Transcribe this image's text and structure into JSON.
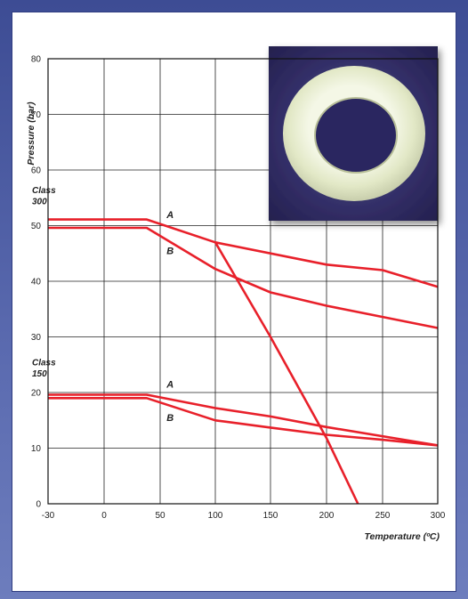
{
  "chart_data": {
    "type": "line",
    "xlabel": "Temperature (ºC)",
    "ylabel": "Pressure (bar)",
    "xlim": [
      -30,
      300
    ],
    "ylim": [
      0,
      80
    ],
    "x_ticks": [
      -30,
      0,
      50,
      100,
      150,
      200,
      250,
      300
    ],
    "y_ticks": [
      0,
      10,
      20,
      30,
      40,
      50,
      60,
      70,
      80
    ],
    "grid": true,
    "annotations": [
      {
        "text": "Class",
        "x": -28,
        "y": 56.5
      },
      {
        "text": "300",
        "x": -28,
        "y": 54.5
      },
      {
        "text": "Class",
        "x": -28,
        "y": 25.5
      },
      {
        "text": "150",
        "x": -28,
        "y": 23.5
      },
      {
        "text": "A",
        "x": 101,
        "y": 52
      },
      {
        "text": "B",
        "x": 101,
        "y": 45.5
      },
      {
        "text": "A",
        "x": 101,
        "y": 21.5
      },
      {
        "text": "B",
        "x": 101,
        "y": 15.5
      }
    ],
    "series": [
      {
        "values": [
          [
            -30,
            51.1
          ],
          [
            38,
            51.1
          ],
          [
            100,
            47
          ],
          [
            200,
            43
          ],
          [
            250,
            42
          ],
          [
            300,
            39
          ]
        ],
        "color": "#e8202a"
      },
      {
        "values": [
          [
            -30,
            49.6
          ],
          [
            38,
            49.6
          ],
          [
            100,
            42.2
          ],
          [
            150,
            38
          ],
          [
            200,
            35.6
          ],
          [
            300,
            31.6
          ]
        ],
        "color": "#e8202a"
      },
      {
        "values": [
          [
            -30,
            19.6
          ],
          [
            38,
            19.6
          ],
          [
            100,
            17.2
          ],
          [
            150,
            15.7
          ],
          [
            200,
            13.8
          ],
          [
            300,
            10.5
          ]
        ],
        "color": "#e8202a"
      },
      {
        "values": [
          [
            -30,
            19
          ],
          [
            38,
            19
          ],
          [
            100,
            15
          ],
          [
            150,
            13.7
          ],
          [
            200,
            12.4
          ],
          [
            250,
            11.5
          ],
          [
            300,
            10.5
          ]
        ],
        "color": "#e8202a"
      },
      {
        "values": [
          [
            100,
            47
          ],
          [
            150,
            30
          ],
          [
            200,
            11.8
          ],
          [
            228,
            0
          ]
        ],
        "color": "#e8202a"
      }
    ]
  },
  "photo": {
    "subject": "white-plastic-ring-washer",
    "background_color": "#3a3670"
  }
}
